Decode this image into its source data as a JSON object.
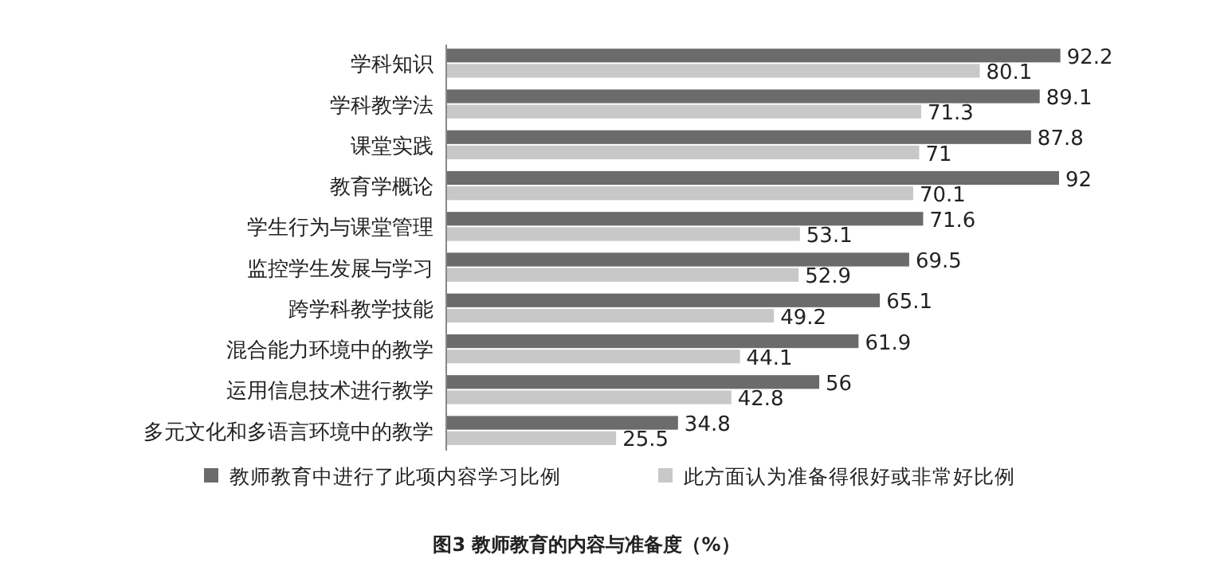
{
  "chart_data": {
    "type": "bar",
    "orientation": "horizontal",
    "title": "图3  教师教育的内容与准备度（%）",
    "categories": [
      "学科知识",
      "学科教学法",
      "课堂实践",
      "教育学概论",
      "学生行为与课堂管理",
      "监控学生发展与学习",
      "跨学科教学技能",
      "混合能力环境中的教学",
      "运用信息技术进行教学",
      "多元文化和多语言环境中的教学"
    ],
    "series": [
      {
        "name": "教师教育中进行了此项内容学习比例",
        "color": "#6b6b6b",
        "values": [
          92.2,
          89.1,
          87.8,
          92,
          71.6,
          69.5,
          65.1,
          61.9,
          56,
          34.8
        ],
        "value_labels": [
          "92.2",
          "89.1",
          "87.8",
          "92",
          "71.6",
          "69.5",
          "65.1",
          "61.9",
          "56",
          "34.8"
        ]
      },
      {
        "name": "此方面认为准备得很好或非常好比例",
        "color": "#c8c8c8",
        "values": [
          80.1,
          71.3,
          71,
          70.1,
          53.1,
          52.9,
          49.2,
          44.1,
          42.8,
          25.5
        ],
        "value_labels": [
          "80.1",
          "71.3",
          "71",
          "70.1",
          "53.1",
          "52.9",
          "49.2",
          "44.1",
          "42.8",
          "25.5"
        ]
      }
    ],
    "legend": "bottom"
  }
}
